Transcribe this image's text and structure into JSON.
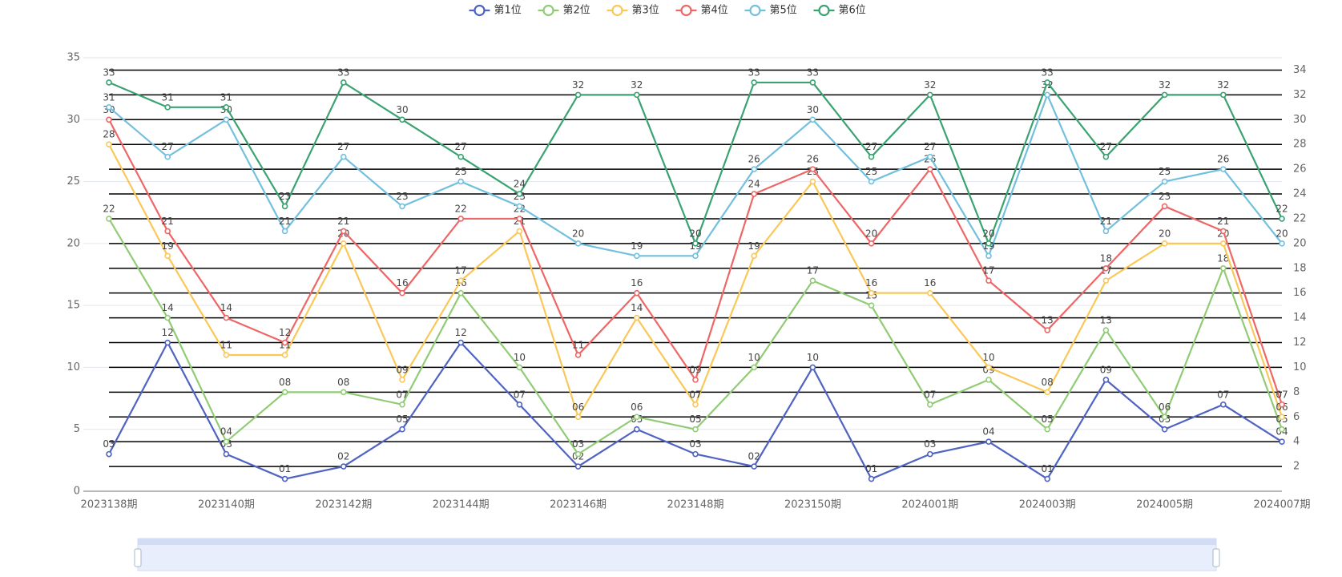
{
  "chart_data": {
    "type": "line",
    "categories": [
      "2023138期",
      null,
      "2023140期",
      null,
      "2023142期",
      null,
      "2023144期",
      null,
      "2023146期",
      null,
      "2023148期",
      null,
      "2023150期",
      null,
      "2024001期",
      null,
      "2024003期",
      null,
      "2024005期",
      null,
      "2024007期"
    ],
    "series": [
      {
        "name": "第1位",
        "color": "#4e63c2",
        "values": [
          3,
          12,
          3,
          1,
          2,
          5,
          12,
          7,
          2,
          5,
          3,
          2,
          10,
          1,
          3,
          4,
          1,
          9,
          5,
          7,
          4
        ],
        "value_labels": [
          "03",
          "12",
          "03",
          "01",
          "02",
          "05",
          "12",
          "07",
          "02",
          "05",
          "03",
          "02",
          "10",
          "01",
          "03",
          "04",
          "01",
          "09",
          "05",
          "07",
          "04"
        ]
      },
      {
        "name": "第2位",
        "color": "#91cc75",
        "values": [
          22,
          14,
          4,
          8,
          8,
          7,
          16,
          10,
          3,
          6,
          5,
          10,
          17,
          15,
          7,
          9,
          5,
          13,
          6,
          18,
          5
        ],
        "value_labels": [
          "22",
          "14",
          "04",
          "08",
          "08",
          "07",
          "16",
          "10",
          "03",
          "06",
          "05",
          "10",
          "17",
          "15",
          "07",
          "09",
          "05",
          "13",
          "06",
          "18",
          "05"
        ]
      },
      {
        "name": "第3位",
        "color": "#fac858",
        "values": [
          28,
          19,
          11,
          11,
          20,
          9,
          17,
          21,
          6,
          14,
          7,
          19,
          25,
          16,
          16,
          10,
          8,
          17,
          20,
          20,
          6
        ],
        "value_labels": [
          "28",
          "19",
          "11",
          "11",
          "20",
          "09",
          "17",
          "21",
          "06",
          "14",
          "07",
          "19",
          "25",
          "16",
          "16",
          "10",
          "08",
          "17",
          "20",
          "20",
          "06"
        ]
      },
      {
        "name": "第4位",
        "color": "#ee6666",
        "values": [
          30,
          21,
          14,
          12,
          21,
          16,
          22,
          22,
          11,
          16,
          9,
          24,
          26,
          20,
          26,
          17,
          13,
          18,
          23,
          21,
          7
        ],
        "value_labels": [
          "30",
          "21",
          "14",
          "12",
          "21",
          "16",
          "22",
          "22",
          "11",
          "16",
          "09",
          "24",
          "26",
          "20",
          "26",
          "17",
          "13",
          "18",
          "23",
          "21",
          "07"
        ]
      },
      {
        "name": "第5位",
        "color": "#73c0de",
        "values": [
          31,
          27,
          30,
          21,
          27,
          23,
          25,
          23,
          20,
          19,
          19,
          26,
          30,
          25,
          27,
          19,
          32,
          21,
          25,
          26,
          20
        ],
        "value_labels": [
          "31",
          "27",
          "30",
          "21",
          "27",
          "23",
          "25",
          "23",
          "20",
          "19",
          "19",
          "26",
          "30",
          "25",
          "27",
          "19",
          "32",
          "21",
          "25",
          "26",
          "20"
        ]
      },
      {
        "name": "第6位",
        "color": "#3ba272",
        "values": [
          33,
          31,
          31,
          23,
          33,
          30,
          27,
          24,
          32,
          32,
          20,
          33,
          33,
          27,
          32,
          20,
          33,
          27,
          32,
          32,
          22
        ],
        "value_labels": [
          "33",
          "31",
          "31",
          "23",
          "33",
          "30",
          "27",
          "24",
          "32",
          "32",
          "20",
          "33",
          "33",
          "27",
          "32",
          "20",
          "33",
          "27",
          "32",
          "32",
          "22"
        ]
      }
    ],
    "ylim": [
      0,
      35
    ],
    "yticks": [
      0,
      5,
      10,
      15,
      20,
      25,
      30,
      35
    ],
    "y2lim": [
      0,
      35
    ],
    "y2ticks": [
      2,
      4,
      6,
      8,
      10,
      12,
      14,
      16,
      18,
      20,
      22,
      24,
      26,
      28,
      30,
      32,
      34
    ],
    "grid": true,
    "legend": "top"
  }
}
